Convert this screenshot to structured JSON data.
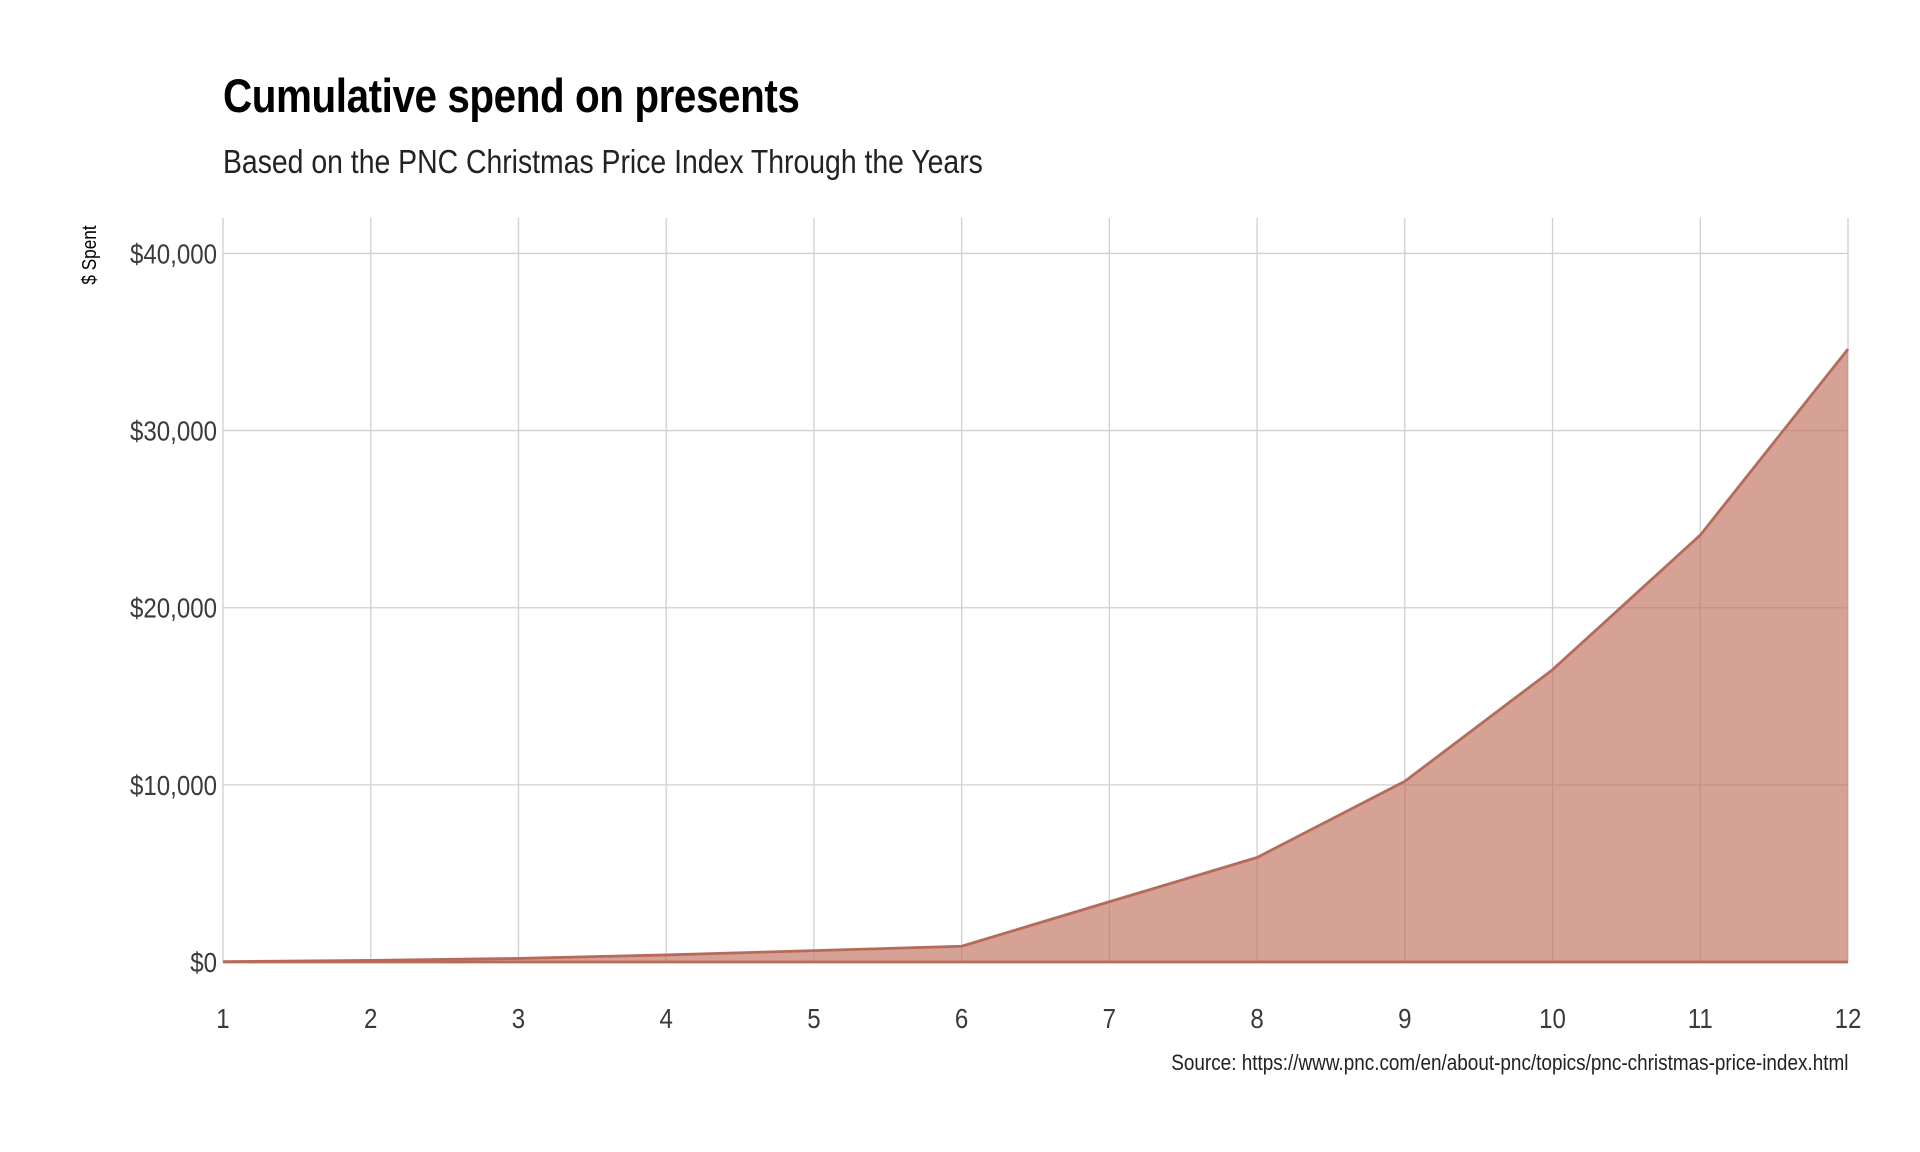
{
  "chart_data": {
    "type": "area",
    "title": "Cumulative spend on presents",
    "subtitle": "Based on the PNC Christmas Price Index Through the Years",
    "caption": "Source: https://www.pnc.com/en/about-pnc/topics/pnc-christmas-price-index.html",
    "xlabel": "",
    "ylabel": "$ Spent",
    "x": [
      1,
      2,
      3,
      4,
      5,
      6,
      7,
      8,
      9,
      10,
      11,
      12
    ],
    "values": [
      20,
      90,
      200,
      400,
      640,
      890,
      3400,
      5900,
      10200,
      16500,
      24100,
      34600
    ],
    "xlim": [
      1,
      12
    ],
    "ylim": [
      0,
      42000
    ],
    "x_ticks": [
      1,
      2,
      3,
      4,
      5,
      6,
      7,
      8,
      9,
      10,
      11,
      12
    ],
    "x_tick_labels": [
      "1",
      "2",
      "3",
      "4",
      "5",
      "6",
      "7",
      "8",
      "9",
      "10",
      "11",
      "12"
    ],
    "y_ticks": [
      0,
      10000,
      20000,
      30000,
      40000
    ],
    "y_tick_labels": [
      "$0",
      "$10,000",
      "$20,000",
      "$30,000",
      "$40,000"
    ],
    "grid": true,
    "legend": "none",
    "fill_color": "#c0705e",
    "fill_opacity": 0.65,
    "line_color": "#b86a5a",
    "grid_color": "#d0d0d0"
  }
}
